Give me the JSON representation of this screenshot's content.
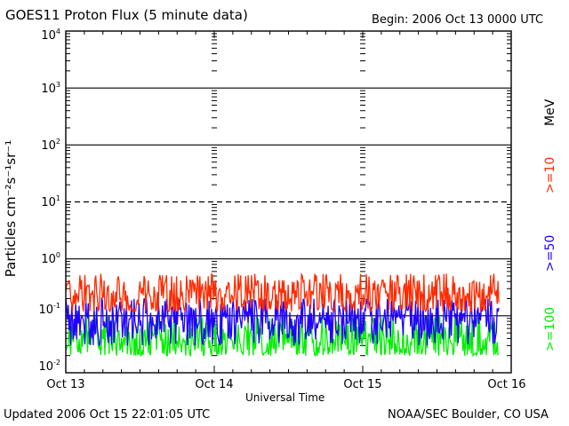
{
  "header": {
    "title": "GOES11 Proton Flux (5 minute data)",
    "begin": "Begin: 2006 Oct 13 0000 UTC"
  },
  "footer": {
    "updated": "Updated 2006 Oct 15 22:01:05 UTC",
    "credit": "NOAA/SEC Boulder, CO USA"
  },
  "chart_data": {
    "type": "line",
    "title": "GOES11 Proton Flux (5 minute data)",
    "xlabel": "Universal Time",
    "ylabel": "Particles cm⁻²s⁻¹sr⁻¹",
    "yscale": "log",
    "ylim": [
      0.01,
      10000
    ],
    "xlim": [
      "Oct 13",
      "Oct 16"
    ],
    "x_tick_labels": [
      "Oct 13",
      "Oct 14",
      "Oct 15",
      "Oct 16"
    ],
    "y_tick_labels": [
      {
        "base": "10",
        "exp": "-2"
      },
      {
        "base": "10",
        "exp": "-1"
      },
      {
        "base": "10",
        "exp": "0"
      },
      {
        "base": "10",
        "exp": "1"
      },
      {
        "base": "10",
        "exp": "2"
      },
      {
        "base": "10",
        "exp": "3"
      },
      {
        "base": "10",
        "exp": "4"
      }
    ],
    "legend_unit": "MeV",
    "grid": "horizontal lines at each decade; dashed line at 10",
    "data_end": "2006 Oct 15 22:00",
    "series": [
      {
        "name": ">=10",
        "color": "#ff2a00",
        "typical": 0.22,
        "min": 0.12,
        "max": 0.55
      },
      {
        "name": ">=50",
        "color": "#1f00ff",
        "typical": 0.09,
        "min": 0.03,
        "max": 0.2
      },
      {
        "name": ">=100",
        "color": "#00ee00",
        "typical": 0.04,
        "min": 0.02,
        "max": 0.1
      }
    ]
  }
}
